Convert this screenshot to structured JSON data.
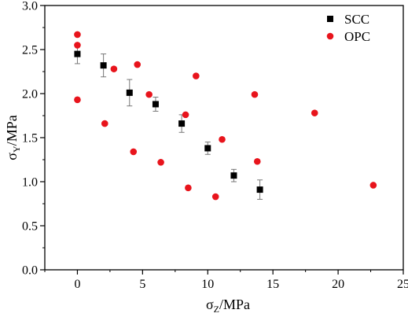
{
  "chart_data": {
    "type": "scatter",
    "xlabel": {
      "symbol": "σ",
      "sub": "Z",
      "unit": "/MPa"
    },
    "ylabel": {
      "symbol": "σ",
      "sub": "Y",
      "unit": "/MPa"
    },
    "xlim": [
      -2.5,
      25
    ],
    "ylim": [
      0,
      3.0
    ],
    "xticks": [
      0,
      5,
      10,
      15,
      20,
      25
    ],
    "xtick_labels": [
      "0",
      "5",
      "10",
      "15",
      "20",
      "25"
    ],
    "yticks": [
      0,
      0.5,
      1.0,
      1.5,
      2.0,
      2.5,
      3.0
    ],
    "ytick_labels": [
      "0.0",
      "0.5",
      "1.0",
      "1.5",
      "2.0",
      "2.5",
      "3.0"
    ],
    "grid": false,
    "legend_position": "top-right",
    "series": [
      {
        "name": "SCC",
        "marker": "square",
        "color": "#000000",
        "points": [
          {
            "x": 0,
            "y": 2.45,
            "err": 0.11
          },
          {
            "x": 2,
            "y": 2.32,
            "err": 0.13
          },
          {
            "x": 4,
            "y": 2.01,
            "err": 0.15
          },
          {
            "x": 6,
            "y": 1.88,
            "err": 0.08
          },
          {
            "x": 8,
            "y": 1.66,
            "err": 0.1
          },
          {
            "x": 10,
            "y": 1.38,
            "err": 0.07
          },
          {
            "x": 12,
            "y": 1.07,
            "err": 0.07
          },
          {
            "x": 14,
            "y": 0.91,
            "err": 0.11
          }
        ]
      },
      {
        "name": "OPC",
        "marker": "circle",
        "color": "#e8141c",
        "points": [
          {
            "x": 0,
            "y": 2.67
          },
          {
            "x": 0,
            "y": 2.55
          },
          {
            "x": 0,
            "y": 1.93
          },
          {
            "x": 2.1,
            "y": 1.66
          },
          {
            "x": 2.8,
            "y": 2.28
          },
          {
            "x": 4.3,
            "y": 1.34
          },
          {
            "x": 4.6,
            "y": 2.33
          },
          {
            "x": 5.5,
            "y": 1.99
          },
          {
            "x": 6.4,
            "y": 1.22
          },
          {
            "x": 8.3,
            "y": 1.76
          },
          {
            "x": 8.5,
            "y": 0.93
          },
          {
            "x": 9.1,
            "y": 2.2
          },
          {
            "x": 10.6,
            "y": 0.83
          },
          {
            "x": 11.1,
            "y": 1.48
          },
          {
            "x": 13.6,
            "y": 1.99
          },
          {
            "x": 13.8,
            "y": 1.23
          },
          {
            "x": 18.2,
            "y": 1.78
          },
          {
            "x": 22.7,
            "y": 0.96
          }
        ]
      }
    ]
  }
}
